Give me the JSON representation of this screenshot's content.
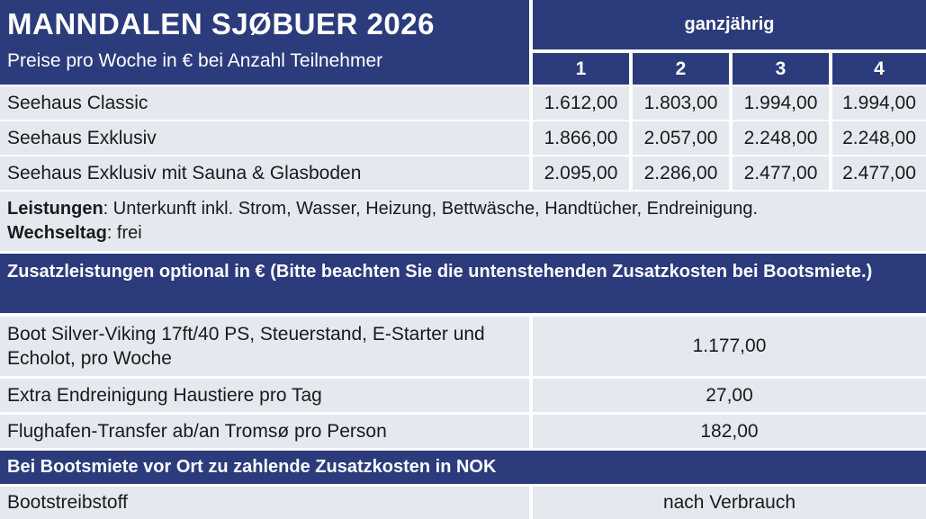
{
  "header": {
    "title": "MANNDALEN SJØBUER 2026",
    "subtitle": "Preise pro Woche in € bei Anzahl Teilnehmer",
    "season": "ganzjährig",
    "participants": [
      "1",
      "2",
      "3",
      "4"
    ]
  },
  "prices": [
    {
      "name": "Seehaus Classic",
      "values": [
        "1.612,00",
        "1.803,00",
        "1.994,00",
        "1.994,00"
      ]
    },
    {
      "name": "Seehaus Exklusiv",
      "values": [
        "1.866,00",
        "2.057,00",
        "2.248,00",
        "2.248,00"
      ]
    },
    {
      "name": "Seehaus Exklusiv mit Sauna & Glasboden",
      "values": [
        "2.095,00",
        "2.286,00",
        "2.477,00",
        "2.477,00"
      ]
    }
  ],
  "services": {
    "leistungen_label": "Leistungen",
    "leistungen_text": ": Unterkunft inkl. Strom, Wasser, Heizung, Bettwäsche, Handtücher, Endreinigung.",
    "wechseltag_label": "Wechseltag",
    "wechseltag_text": ": frei"
  },
  "extras": {
    "heading": "Zusatzleistungen optional in € (Bitte beachten Sie die untenstehenden Zusatzkosten bei Bootsmiete.)",
    "rows": [
      {
        "name": "Boot Silver-Viking 17ft/40 PS, Steuerstand, E-Starter und Echolot, pro Woche",
        "value": "1.177,00"
      },
      {
        "name": "Extra Endreinigung Haustiere pro Tag",
        "value": "27,00"
      },
      {
        "name": "Flughafen-Transfer ab/an Tromsø pro Person",
        "value": "182,00"
      }
    ]
  },
  "local_costs": {
    "heading": "Bei Bootsmiete vor Ort zu zahlende Zusatzkosten in NOK",
    "rows": [
      {
        "name": "Bootstreibstoff",
        "value": "nach Verbrauch"
      }
    ]
  }
}
